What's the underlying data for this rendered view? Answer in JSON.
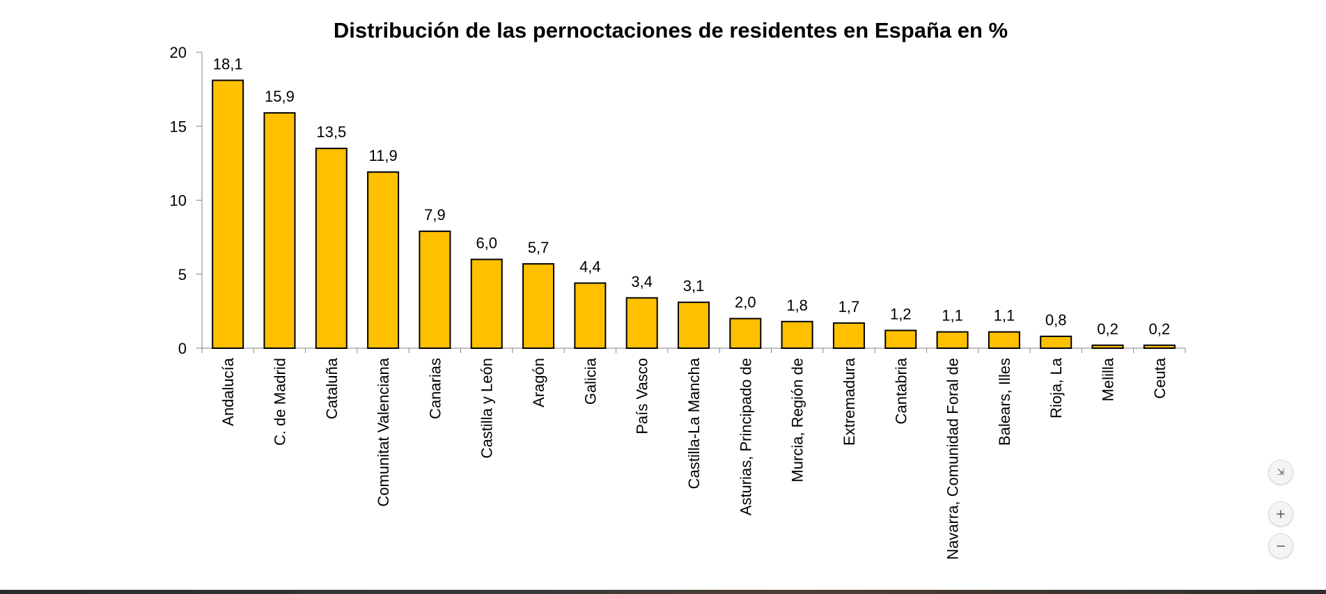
{
  "chart_data": {
    "type": "bar",
    "title": "Distribución de las pernoctaciones de residentes en España en %",
    "xlabel": "",
    "ylabel": "",
    "ylim": [
      0,
      20
    ],
    "yticks": [
      "0",
      "5",
      "10",
      "15",
      "20"
    ],
    "categories": [
      "Andalucía",
      "C. de Madrid",
      "Cataluña",
      "Comunitat Valenciana",
      "Canarias",
      "Castilla y León",
      "Aragón",
      "Galicia",
      "País Vasco",
      "Castilla-La Mancha",
      "Asturias, Principado de",
      "Murcia, Región de",
      "Extremadura",
      "Cantabria",
      "Navarra, Comunidad Foral de",
      "Balears, Illes",
      "Rioja, La",
      "Melilla",
      "Ceuta"
    ],
    "values": [
      18.1,
      15.9,
      13.5,
      11.9,
      7.9,
      6.0,
      5.7,
      4.4,
      3.4,
      3.1,
      2.0,
      1.8,
      1.7,
      1.2,
      1.1,
      1.1,
      0.8,
      0.2,
      0.2
    ],
    "data_labels": [
      "18,1",
      "15,9",
      "13,5",
      "11,9",
      "7,9",
      "6,0",
      "5,7",
      "4,4",
      "3,4",
      "3,1",
      "2,0",
      "1,8",
      "1,7",
      "1,2",
      "1,1",
      "1,1",
      "0,8",
      "0,2",
      "0,2"
    ],
    "bar_color": "#FFC000",
    "bar_edge_color": "#000000",
    "grid": false,
    "legend": "none"
  },
  "controls": {
    "collapse_icon": "⇲",
    "zoom_in_icon": "+",
    "zoom_out_icon": "−"
  }
}
